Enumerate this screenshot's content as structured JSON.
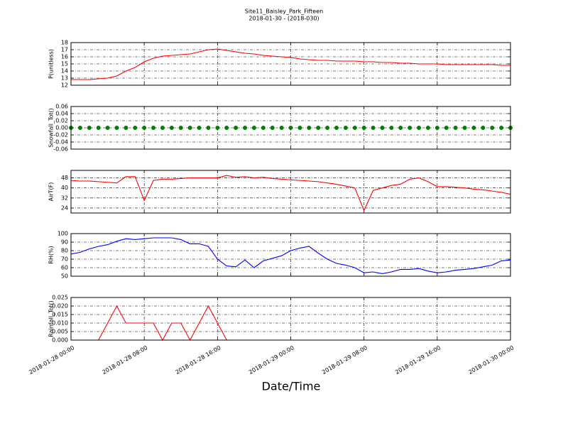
{
  "title": "Site11_Baisley_Park_Fifteen",
  "subtitle": "2018-01-30 - (2018-030)",
  "chart_data": [
    {
      "type": "line",
      "ylabel": "P(unitless)",
      "color": "#ff0000",
      "x": [
        "2018-01-28 00:00",
        "2018-01-28 01:00",
        "2018-01-28 02:00",
        "2018-01-28 03:00",
        "2018-01-28 04:00",
        "2018-01-28 05:00",
        "2018-01-28 06:00",
        "2018-01-28 07:00",
        "2018-01-28 08:00",
        "2018-01-28 09:00",
        "2018-01-28 10:00",
        "2018-01-28 11:00",
        "2018-01-28 12:00",
        "2018-01-28 13:00",
        "2018-01-28 14:00",
        "2018-01-28 15:00",
        "2018-01-28 16:00",
        "2018-01-28 17:00",
        "2018-01-28 18:00",
        "2018-01-28 19:00",
        "2018-01-28 20:00",
        "2018-01-28 21:00",
        "2018-01-28 22:00",
        "2018-01-28 23:00",
        "2018-01-29 00:00",
        "2018-01-29 01:00",
        "2018-01-29 02:00",
        "2018-01-29 03:00",
        "2018-01-29 04:00",
        "2018-01-29 05:00",
        "2018-01-29 06:00",
        "2018-01-29 07:00",
        "2018-01-29 08:00",
        "2018-01-29 09:00",
        "2018-01-29 10:00",
        "2018-01-29 11:00",
        "2018-01-29 12:00",
        "2018-01-29 13:00",
        "2018-01-29 14:00",
        "2018-01-29 15:00",
        "2018-01-29 16:00",
        "2018-01-29 17:00",
        "2018-01-29 18:00",
        "2018-01-29 19:00",
        "2018-01-29 20:00",
        "2018-01-29 21:00",
        "2018-01-29 22:00",
        "2018-01-29 23:00",
        "2018-01-30 00:00"
      ],
      "values": [
        12.8,
        12.8,
        12.8,
        12.9,
        13.0,
        13.3,
        14.0,
        14.5,
        15.3,
        15.8,
        16.1,
        16.2,
        16.3,
        16.4,
        16.7,
        17.0,
        17.1,
        16.9,
        16.7,
        16.5,
        16.4,
        16.2,
        16.1,
        16.0,
        15.9,
        15.7,
        15.6,
        15.5,
        15.5,
        15.4,
        15.4,
        15.4,
        15.3,
        15.3,
        15.2,
        15.2,
        15.1,
        15.1,
        15.0,
        15.0,
        15.0,
        14.9,
        14.9,
        14.9,
        14.9,
        14.9,
        14.9,
        14.8,
        14.8
      ],
      "xlim": [
        "2018-01-28 00:00",
        "2018-01-30 00:00"
      ],
      "ylim": [
        12,
        18
      ],
      "yticks": [
        12,
        13,
        14,
        15,
        16,
        17,
        18
      ],
      "grid": true
    },
    {
      "type": "scatter",
      "ylabel": "Snowfall_Tot()",
      "color": "#008000",
      "x": [
        "2018-01-28 00:00",
        "2018-01-28 01:00",
        "2018-01-28 02:00",
        "2018-01-28 03:00",
        "2018-01-28 04:00",
        "2018-01-28 05:00",
        "2018-01-28 06:00",
        "2018-01-28 07:00",
        "2018-01-28 08:00",
        "2018-01-28 09:00",
        "2018-01-28 10:00",
        "2018-01-28 11:00",
        "2018-01-28 12:00",
        "2018-01-28 13:00",
        "2018-01-28 14:00",
        "2018-01-28 15:00",
        "2018-01-28 16:00",
        "2018-01-28 17:00",
        "2018-01-28 18:00",
        "2018-01-28 19:00",
        "2018-01-28 20:00",
        "2018-01-28 21:00",
        "2018-01-28 22:00",
        "2018-01-28 23:00",
        "2018-01-29 00:00",
        "2018-01-29 01:00",
        "2018-01-29 02:00",
        "2018-01-29 03:00",
        "2018-01-29 04:00",
        "2018-01-29 05:00",
        "2018-01-29 06:00",
        "2018-01-29 07:00",
        "2018-01-29 08:00",
        "2018-01-29 09:00",
        "2018-01-29 10:00",
        "2018-01-29 11:00",
        "2018-01-29 12:00",
        "2018-01-29 13:00",
        "2018-01-29 14:00",
        "2018-01-29 15:00",
        "2018-01-29 16:00",
        "2018-01-29 17:00",
        "2018-01-29 18:00",
        "2018-01-29 19:00",
        "2018-01-29 20:00",
        "2018-01-29 21:00",
        "2018-01-29 22:00",
        "2018-01-29 23:00",
        "2018-01-30 00:00"
      ],
      "values": [
        0,
        0,
        0,
        0,
        0,
        0,
        0,
        0,
        0,
        0,
        0,
        0,
        0,
        0,
        0,
        0,
        0,
        0,
        0,
        0,
        0,
        0,
        0,
        0,
        0,
        0,
        0,
        0,
        0,
        0,
        0,
        0,
        0,
        0,
        0,
        0,
        0,
        0,
        0,
        0,
        0,
        0,
        0,
        0,
        0,
        0,
        0,
        0,
        0
      ],
      "xlim": [
        "2018-01-28 00:00",
        "2018-01-30 00:00"
      ],
      "ylim": [
        -0.06,
        0.06
      ],
      "yticks": [
        {
          "value": -0.06,
          "label": "-0.06"
        },
        {
          "value": -0.04,
          "label": "-0.04"
        },
        {
          "value": -0.02,
          "label": "-0.02"
        },
        {
          "value": 0,
          "label": "0.00"
        },
        {
          "value": 0.02,
          "label": "0.02"
        },
        {
          "value": 0.04,
          "label": "0.04"
        },
        {
          "value": 0.06,
          "label": "0.06"
        }
      ],
      "grid": true
    },
    {
      "type": "line",
      "ylabel": "AirT(F)",
      "color": "#ff0000",
      "x": [
        "2018-01-28 00:00",
        "2018-01-28 01:00",
        "2018-01-28 02:00",
        "2018-01-28 03:00",
        "2018-01-28 04:00",
        "2018-01-28 05:00",
        "2018-01-28 06:00",
        "2018-01-28 07:00",
        "2018-01-28 08:00",
        "2018-01-28 09:00",
        "2018-01-28 10:00",
        "2018-01-28 11:00",
        "2018-01-28 12:00",
        "2018-01-28 13:00",
        "2018-01-28 14:00",
        "2018-01-28 15:00",
        "2018-01-28 16:00",
        "2018-01-28 17:00",
        "2018-01-28 18:00",
        "2018-01-28 19:00",
        "2018-01-28 20:00",
        "2018-01-28 21:00",
        "2018-01-28 22:00",
        "2018-01-28 23:00",
        "2018-01-29 00:00",
        "2018-01-29 01:00",
        "2018-01-29 02:00",
        "2018-01-29 03:00",
        "2018-01-29 04:00",
        "2018-01-29 05:00",
        "2018-01-29 06:00",
        "2018-01-29 07:00",
        "2018-01-29 08:00",
        "2018-01-29 09:00",
        "2018-01-29 10:00",
        "2018-01-29 11:00",
        "2018-01-29 12:00",
        "2018-01-29 13:00",
        "2018-01-29 14:00",
        "2018-01-29 15:00",
        "2018-01-29 16:00",
        "2018-01-29 17:00",
        "2018-01-29 18:00",
        "2018-01-29 19:00",
        "2018-01-29 20:00",
        "2018-01-29 21:00",
        "2018-01-29 22:00",
        "2018-01-29 23:00",
        "2018-01-30 00:00"
      ],
      "values": [
        46,
        45.5,
        45.5,
        45,
        44.5,
        44,
        49,
        49,
        30,
        46,
        47,
        47,
        47.5,
        48,
        48,
        48,
        48,
        50,
        48.5,
        49,
        48,
        48.5,
        47.5,
        47,
        46.5,
        46,
        45.5,
        45,
        44,
        43,
        41.5,
        40,
        22,
        38,
        40,
        42,
        43,
        47,
        48,
        45,
        41,
        41,
        40.5,
        40,
        39,
        38.5,
        37.5,
        36.5,
        35
      ],
      "xlim": [
        "2018-01-28 00:00",
        "2018-01-30 00:00"
      ],
      "ylim": [
        20,
        54
      ],
      "yticks": [
        24,
        32,
        40,
        48
      ],
      "grid": true
    },
    {
      "type": "line",
      "ylabel": "RH(%)",
      "color": "#0000ff",
      "x": [
        "2018-01-28 00:00",
        "2018-01-28 01:00",
        "2018-01-28 02:00",
        "2018-01-28 03:00",
        "2018-01-28 04:00",
        "2018-01-28 05:00",
        "2018-01-28 06:00",
        "2018-01-28 07:00",
        "2018-01-28 08:00",
        "2018-01-28 09:00",
        "2018-01-28 10:00",
        "2018-01-28 11:00",
        "2018-01-28 12:00",
        "2018-01-28 13:00",
        "2018-01-28 14:00",
        "2018-01-28 15:00",
        "2018-01-28 16:00",
        "2018-01-28 17:00",
        "2018-01-28 18:00",
        "2018-01-28 19:00",
        "2018-01-28 20:00",
        "2018-01-28 21:00",
        "2018-01-28 22:00",
        "2018-01-28 23:00",
        "2018-01-29 00:00",
        "2018-01-29 01:00",
        "2018-01-29 02:00",
        "2018-01-29 03:00",
        "2018-01-29 04:00",
        "2018-01-29 05:00",
        "2018-01-29 06:00",
        "2018-01-29 07:00",
        "2018-01-29 08:00",
        "2018-01-29 09:00",
        "2018-01-29 10:00",
        "2018-01-29 11:00",
        "2018-01-29 12:00",
        "2018-01-29 13:00",
        "2018-01-29 14:00",
        "2018-01-29 15:00",
        "2018-01-29 16:00",
        "2018-01-29 17:00",
        "2018-01-29 18:00",
        "2018-01-29 19:00",
        "2018-01-29 20:00",
        "2018-01-29 21:00",
        "2018-01-29 22:00",
        "2018-01-29 23:00",
        "2018-01-30 00:00"
      ],
      "values": [
        76,
        78,
        82,
        85,
        87,
        91,
        94,
        93,
        94,
        95,
        95,
        95,
        93,
        88,
        88,
        85,
        70,
        62,
        61,
        69,
        60,
        68,
        71,
        74,
        80,
        83,
        85,
        77,
        70,
        65,
        63,
        60,
        54,
        55,
        53,
        55,
        58,
        58,
        59,
        56,
        54,
        55,
        57,
        58,
        59,
        61,
        63,
        68,
        69
      ],
      "xlim": [
        "2018-01-28 00:00",
        "2018-01-30 00:00"
      ],
      "ylim": [
        50,
        100
      ],
      "yticks": [
        50,
        60,
        70,
        80,
        90,
        100
      ],
      "grid": true
    },
    {
      "type": "line",
      "ylabel": "Rainfall_Tot()",
      "color": "#ff0000",
      "xlabel": "Date/Time",
      "x": [
        "2018-01-28 00:00",
        "2018-01-28 01:00",
        "2018-01-28 02:00",
        "2018-01-28 03:00",
        "2018-01-28 04:00",
        "2018-01-28 05:00",
        "2018-01-28 06:00",
        "2018-01-28 07:00",
        "2018-01-28 08:00",
        "2018-01-28 09:00",
        "2018-01-28 10:00",
        "2018-01-28 11:00",
        "2018-01-28 12:00",
        "2018-01-28 13:00",
        "2018-01-28 14:00",
        "2018-01-28 15:00",
        "2018-01-28 16:00",
        "2018-01-28 17:00",
        "2018-01-28 18:00",
        "2018-01-28 19:00",
        "2018-01-28 20:00",
        "2018-01-28 21:00",
        "2018-01-28 22:00",
        "2018-01-28 23:00",
        "2018-01-29 00:00",
        "2018-01-29 01:00",
        "2018-01-29 02:00",
        "2018-01-29 03:00",
        "2018-01-29 04:00",
        "2018-01-29 05:00",
        "2018-01-29 06:00",
        "2018-01-29 07:00",
        "2018-01-29 08:00",
        "2018-01-29 09:00",
        "2018-01-29 10:00",
        "2018-01-29 11:00",
        "2018-01-29 12:00",
        "2018-01-29 13:00",
        "2018-01-29 14:00",
        "2018-01-29 15:00",
        "2018-01-29 16:00",
        "2018-01-29 17:00",
        "2018-01-29 18:00",
        "2018-01-29 19:00",
        "2018-01-29 20:00",
        "2018-01-29 21:00",
        "2018-01-29 22:00",
        "2018-01-29 23:00",
        "2018-01-30 00:00"
      ],
      "values": [
        0,
        0,
        0,
        0,
        0.01,
        0.02,
        0.01,
        0.01,
        0.01,
        0.01,
        0,
        0.01,
        0.01,
        0,
        0.01,
        0.02,
        0.01,
        0,
        0,
        0,
        0,
        0,
        0,
        0,
        0,
        0,
        0,
        0,
        0,
        0,
        0,
        0,
        0,
        0,
        0,
        0,
        0,
        0,
        0,
        0,
        0,
        0,
        0,
        0,
        0,
        0,
        0,
        0,
        0
      ],
      "xlim": [
        "2018-01-28 00:00",
        "2018-01-30 00:00"
      ],
      "xticks": [
        "2018-01-28 00:00",
        "2018-01-28 08:00",
        "2018-01-28 16:00",
        "2018-01-29 00:00",
        "2018-01-29 08:00",
        "2018-01-29 16:00",
        "2018-01-30 00:00"
      ],
      "ylim": [
        0,
        0.025
      ],
      "yticks": [
        {
          "value": 0,
          "label": "0.000"
        },
        {
          "value": 0.005,
          "label": "0.005"
        },
        {
          "value": 0.01,
          "label": "0.010"
        },
        {
          "value": 0.015,
          "label": "0.015"
        },
        {
          "value": 0.02,
          "label": "0.020"
        },
        {
          "value": 0.025,
          "label": "0.025"
        }
      ],
      "grid": true
    }
  ]
}
